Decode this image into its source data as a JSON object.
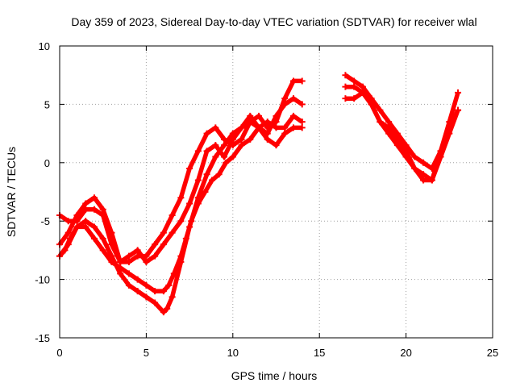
{
  "chart_data": {
    "type": "line",
    "title": "Day 359 of 2023, Sidereal Day-to-day VTEC variation (SDTVAR) for receiver wlal",
    "xlabel": "GPS time / hours",
    "ylabel": "SDTVAR / TECUs",
    "xlim": [
      0,
      25
    ],
    "ylim": [
      -15,
      10
    ],
    "xticks": [
      "0",
      "5",
      "10",
      "15",
      "20",
      "25"
    ],
    "yticks": [
      "10",
      "5",
      "0",
      "-5",
      "-10",
      "-15"
    ],
    "xtick_values": [
      0,
      5,
      10,
      15,
      20,
      25
    ],
    "ytick_values": [
      10,
      5,
      0,
      -5,
      -10,
      -15
    ],
    "grid": true,
    "color": "#ff0000",
    "series": [
      {
        "name": "trace-1",
        "x": [
          0,
          0.3,
          0.6,
          1.0,
          1.5,
          2.0,
          2.5,
          3.0,
          3.5,
          4.0,
          4.5,
          5.0,
          5.5,
          6.0,
          6.3,
          6.6,
          7.0,
          7.3,
          7.6,
          8.0,
          8.4,
          8.8,
          9.2,
          9.6,
          10.0,
          10.5,
          11.0,
          11.5,
          12.0,
          12.5,
          13.0,
          13.5,
          14.0
        ],
        "y": [
          -8.0,
          -7.5,
          -6.5,
          -5.5,
          -5.5,
          -6.5,
          -7.5,
          -8.5,
          -9.0,
          -9.5,
          -10.0,
          -10.5,
          -11.0,
          -11.0,
          -10.5,
          -9.5,
          -8.0,
          -6.5,
          -5.0,
          -3.5,
          -2.5,
          -1.5,
          -1.0,
          0.0,
          0.5,
          1.5,
          2.0,
          3.0,
          3.5,
          3.0,
          3.0,
          4.0,
          3.5
        ]
      },
      {
        "name": "trace-2",
        "x": [
          0,
          0.5,
          1.0,
          1.5,
          2.0,
          2.5,
          3.0,
          3.5,
          4.0,
          4.5,
          5.0,
          5.5,
          6.0,
          6.2,
          6.5,
          7.0,
          7.5,
          8.0,
          8.5,
          9.0,
          9.5,
          10.0,
          10.5,
          11.0,
          11.5,
          12.0,
          12.5,
          13.0,
          13.5,
          14.0
        ],
        "y": [
          -8.0,
          -7.0,
          -5.5,
          -5.0,
          -5.5,
          -6.5,
          -8.0,
          -9.5,
          -10.5,
          -11.0,
          -11.5,
          -12.0,
          -12.8,
          -12.5,
          -11.5,
          -8.5,
          -5.5,
          -3.0,
          -1.0,
          0.5,
          1.5,
          2.5,
          3.0,
          3.5,
          3.0,
          2.0,
          1.5,
          2.5,
          3.0,
          3.0
        ]
      },
      {
        "name": "trace-3",
        "x": [
          0,
          0.5,
          1.0,
          1.5,
          2.0,
          2.5,
          3.0,
          3.5,
          4.0,
          4.5,
          5.0,
          5.5,
          6.0,
          6.5,
          7.0,
          7.5,
          8.0,
          8.5,
          9.0,
          9.5,
          10.0,
          10.5,
          11.0,
          11.5,
          12.0,
          12.5,
          13.0,
          13.5,
          14.0
        ],
        "y": [
          -7.0,
          -6.0,
          -4.5,
          -3.5,
          -3.0,
          -4.0,
          -6.0,
          -8.5,
          -8.5,
          -8.0,
          -8.0,
          -7.0,
          -6.0,
          -4.5,
          -3.0,
          -0.5,
          1.0,
          2.5,
          3.0,
          2.0,
          1.5,
          2.0,
          3.5,
          4.0,
          3.0,
          3.5,
          5.5,
          7.0,
          7.0
        ]
      },
      {
        "name": "trace-4",
        "x": [
          0,
          0.5,
          1.0,
          1.5,
          2.0,
          2.5,
          3.0,
          3.5,
          4.0,
          4.5,
          5.0,
          5.5,
          6.0,
          6.5,
          7.0,
          7.5,
          8.0,
          8.5,
          9.0,
          9.5,
          10.0,
          10.5,
          11.0,
          11.5,
          12.0,
          12.5,
          13.0,
          13.5,
          14.0
        ],
        "y": [
          -4.5,
          -5.0,
          -5.0,
          -4.0,
          -4.0,
          -4.5,
          -7.0,
          -8.5,
          -8.0,
          -7.5,
          -8.5,
          -8.0,
          -7.0,
          -6.0,
          -5.0,
          -3.5,
          -1.5,
          1.0,
          1.5,
          0.5,
          2.0,
          3.0,
          4.0,
          3.0,
          2.5,
          4.0,
          5.0,
          5.5,
          5.0
        ]
      },
      {
        "name": "trace-5",
        "x": [
          16.5,
          17.0,
          17.5,
          18.0,
          18.5,
          19.0,
          19.5,
          20.0,
          20.5,
          21.0,
          21.5,
          22.0,
          22.5,
          23.0
        ],
        "y": [
          7.5,
          7.0,
          6.5,
          5.5,
          4.5,
          3.5,
          2.5,
          1.5,
          0.5,
          0.0,
          -0.5,
          1.0,
          3.5,
          6.0
        ]
      },
      {
        "name": "trace-6",
        "x": [
          16.5,
          17.0,
          17.5,
          18.0,
          18.5,
          19.0,
          19.5,
          20.0,
          20.5,
          21.0,
          21.5,
          22.0,
          22.5,
          23.0
        ],
        "y": [
          6.5,
          6.5,
          6.0,
          5.0,
          3.5,
          3.0,
          2.0,
          1.0,
          -0.5,
          -1.0,
          -1.5,
          1.0,
          3.0,
          4.5
        ]
      },
      {
        "name": "trace-7",
        "x": [
          16.5,
          17.0,
          17.5,
          18.0,
          18.5,
          19.0,
          19.5,
          20.0,
          20.5,
          21.0,
          21.5,
          22.0,
          22.5,
          23.0
        ],
        "y": [
          5.5,
          5.5,
          6.0,
          5.0,
          3.5,
          2.5,
          1.5,
          0.5,
          -0.5,
          -1.5,
          -1.5,
          0.5,
          2.5,
          4.5
        ]
      }
    ]
  }
}
